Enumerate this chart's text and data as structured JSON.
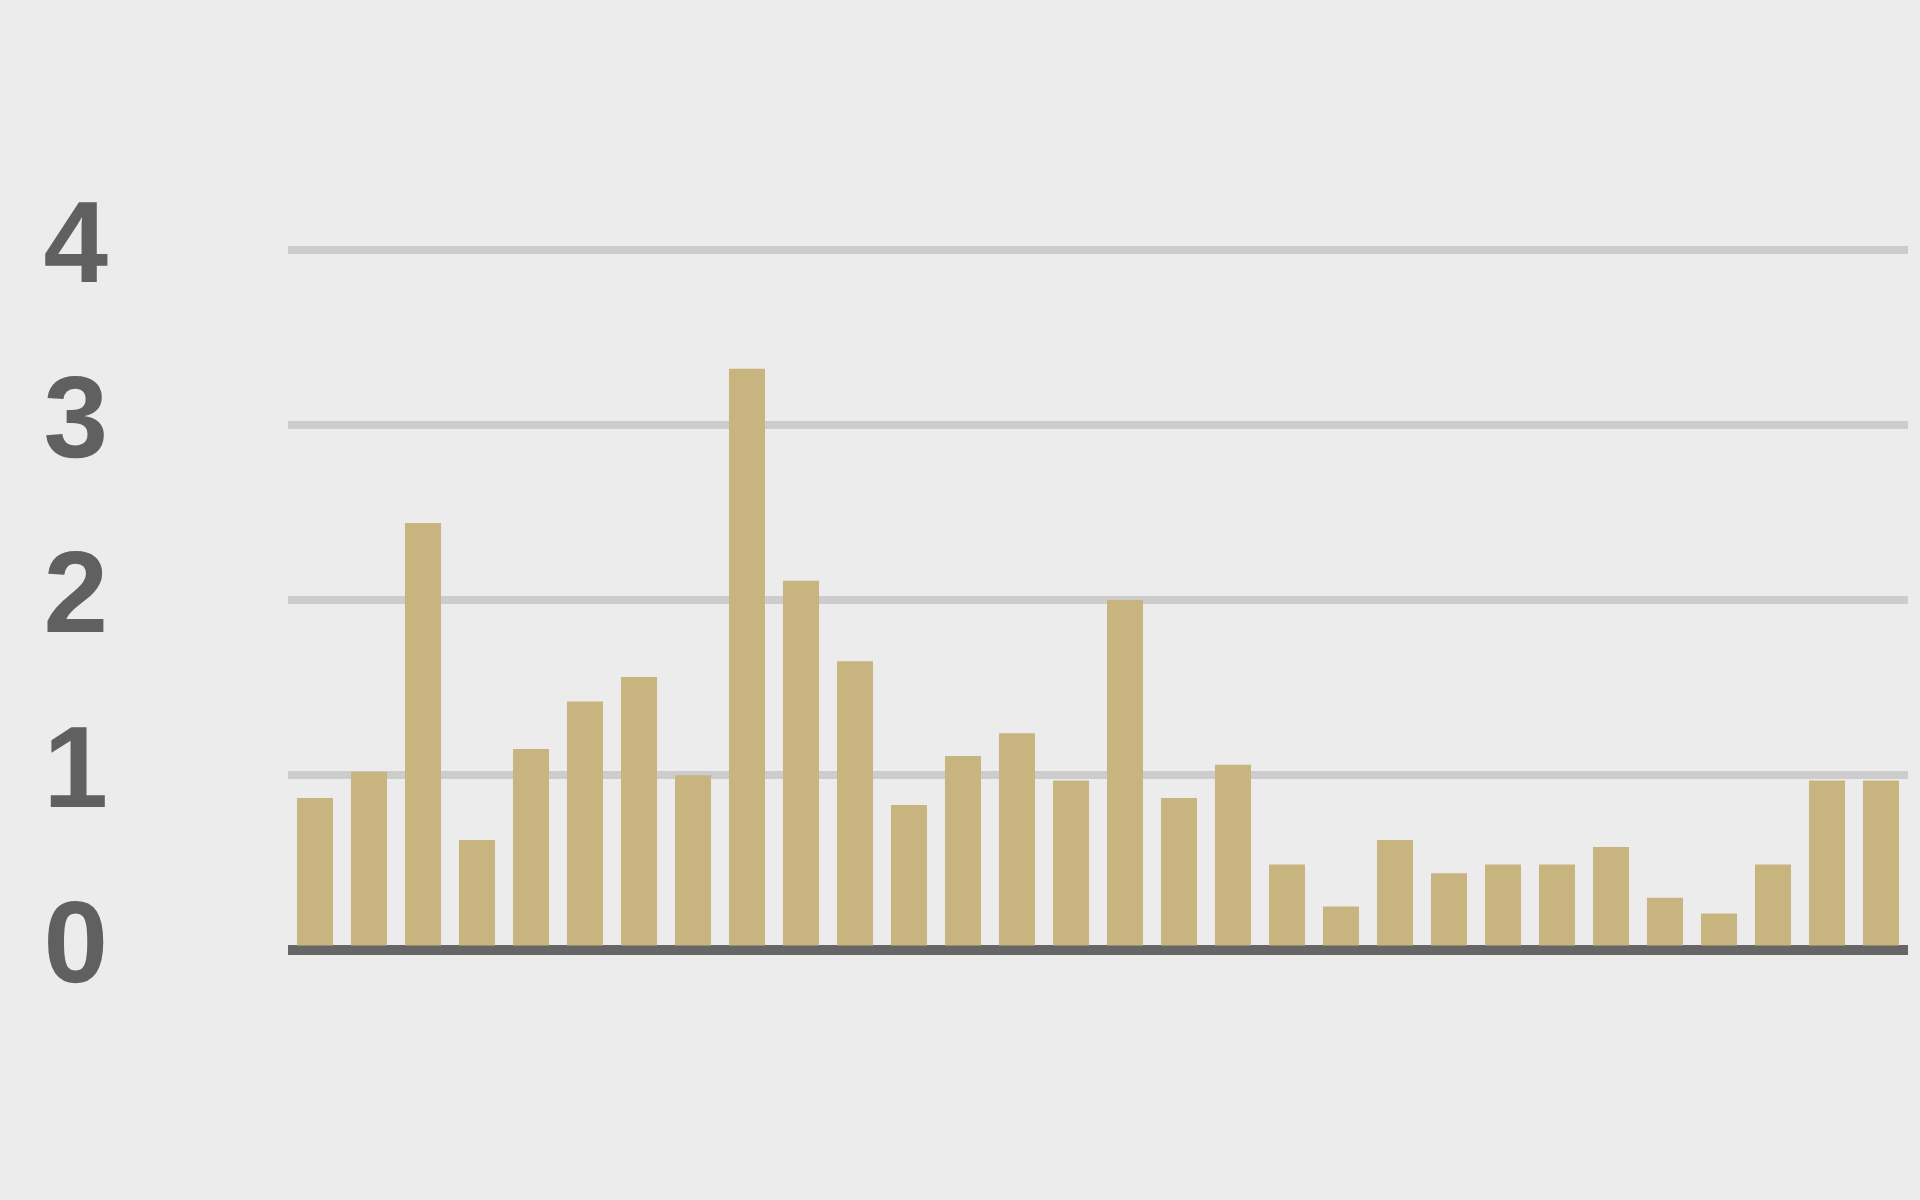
{
  "chart_data": {
    "type": "bar",
    "categories": [
      null,
      null,
      null,
      null,
      null,
      null,
      null,
      null,
      null,
      null,
      null,
      null,
      null,
      null,
      null,
      null,
      null,
      null,
      null,
      null,
      null,
      null,
      null,
      null,
      null,
      null,
      null,
      null,
      null,
      null
    ],
    "values": [
      0.87,
      1.02,
      2.44,
      0.63,
      1.15,
      1.42,
      1.56,
      1.0,
      3.32,
      2.11,
      1.65,
      0.83,
      1.11,
      1.24,
      0.97,
      2.0,
      0.87,
      1.06,
      0.49,
      0.25,
      0.63,
      0.44,
      0.49,
      0.49,
      0.59,
      0.3,
      0.21,
      0.49,
      0.97,
      0.97
    ],
    "color": "#c8b47f",
    "ylim": [
      0,
      4
    ],
    "yticks": [
      0,
      1,
      2,
      3,
      4
    ],
    "grid": "y",
    "tick_labels": "y",
    "legend": false
  }
}
